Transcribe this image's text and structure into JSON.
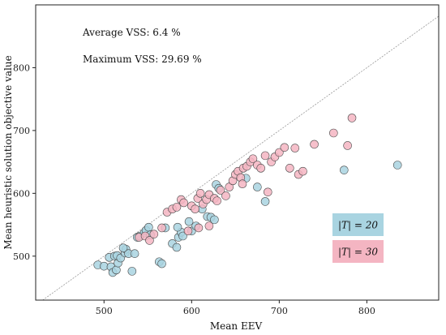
{
  "chart_data": {
    "type": "scatter",
    "xlabel": "Mean EEV",
    "ylabel": "Mean heuristic solution objective value",
    "xlim": [
      422,
      882
    ],
    "ylim": [
      430,
      900
    ],
    "xticks": [
      500,
      600,
      700,
      800
    ],
    "yticks": [
      500,
      600,
      700,
      800
    ],
    "grid": false,
    "reference_line": "y = x",
    "annotations": [
      "Average VSS: 6.4 %",
      "Maximum VSS: 29.69 %"
    ],
    "legend_position": "right",
    "series": [
      {
        "name": "|T| = 20",
        "color": "#a9d4e1",
        "points": [
          [
            493,
            486
          ],
          [
            500,
            484
          ],
          [
            506,
            498
          ],
          [
            508,
            483
          ],
          [
            510,
            474
          ],
          [
            514,
            478
          ],
          [
            516,
            489
          ],
          [
            512,
            500
          ],
          [
            515,
            501
          ],
          [
            519,
            497
          ],
          [
            524,
            505
          ],
          [
            525,
            511
          ],
          [
            528,
            504
          ],
          [
            522,
            513
          ],
          [
            532,
            476
          ],
          [
            535,
            504
          ],
          [
            538,
            530
          ],
          [
            541,
            532
          ],
          [
            546,
            537
          ],
          [
            548,
            541
          ],
          [
            551,
            546
          ],
          [
            553,
            534
          ],
          [
            563,
            491
          ],
          [
            566,
            488
          ],
          [
            570,
            545
          ],
          [
            578,
            520
          ],
          [
            583,
            514
          ],
          [
            585,
            530
          ],
          [
            588,
            538
          ],
          [
            590,
            532
          ],
          [
            584,
            546
          ],
          [
            597,
            555
          ],
          [
            600,
            540
          ],
          [
            605,
            548
          ],
          [
            612,
            575
          ],
          [
            618,
            563
          ],
          [
            622,
            562
          ],
          [
            626,
            558
          ],
          [
            628,
            614
          ],
          [
            631,
            608
          ],
          [
            662,
            624
          ],
          [
            675,
            610
          ],
          [
            684,
            587
          ],
          [
            774,
            637
          ],
          [
            835,
            645
          ]
        ]
      },
      {
        "name": "|T| = 30",
        "color": "#f4b5c2",
        "points": [
          [
            540,
            530
          ],
          [
            547,
            532
          ],
          [
            552,
            525
          ],
          [
            557,
            535
          ],
          [
            566,
            545
          ],
          [
            572,
            570
          ],
          [
            578,
            575
          ],
          [
            583,
            578
          ],
          [
            588,
            590
          ],
          [
            591,
            585
          ],
          [
            596,
            540
          ],
          [
            600,
            580
          ],
          [
            604,
            575
          ],
          [
            607,
            592
          ],
          [
            610,
            600
          ],
          [
            613,
            583
          ],
          [
            617,
            590
          ],
          [
            620,
            598
          ],
          [
            626,
            592
          ],
          [
            629,
            588
          ],
          [
            633,
            605
          ],
          [
            639,
            596
          ],
          [
            643,
            610
          ],
          [
            647,
            620
          ],
          [
            650,
            630
          ],
          [
            653,
            635
          ],
          [
            656,
            625
          ],
          [
            659,
            640
          ],
          [
            663,
            643
          ],
          [
            667,
            650
          ],
          [
            670,
            655
          ],
          [
            675,
            645
          ],
          [
            679,
            640
          ],
          [
            684,
            660
          ],
          [
            687,
            602
          ],
          [
            691,
            650
          ],
          [
            695,
            658
          ],
          [
            700,
            665
          ],
          [
            706,
            673
          ],
          [
            712,
            640
          ],
          [
            718,
            672
          ],
          [
            722,
            630
          ],
          [
            727,
            635
          ],
          [
            740,
            678
          ],
          [
            762,
            696
          ],
          [
            778,
            676
          ],
          [
            783,
            720
          ],
          [
            608,
            545
          ],
          [
            658,
            615
          ],
          [
            620,
            548
          ]
        ]
      }
    ]
  }
}
